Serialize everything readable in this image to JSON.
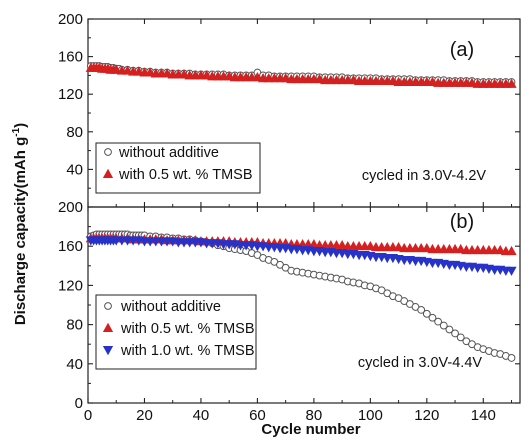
{
  "figure": {
    "ylabel": "Discharge capacity(mAh g",
    "ylabel_sup": "-1",
    "ylabel_close": ")",
    "xlabel": "Cycle number"
  },
  "chart_data": [
    {
      "type": "scatter",
      "panel_label": "(a)",
      "annotation": "cycled in 3.0V-4.2V",
      "xlim": [
        0,
        153
      ],
      "ylim": [
        0,
        200
      ],
      "xticks": [
        0,
        20,
        40,
        60,
        80,
        100,
        120,
        140
      ],
      "yticks": [
        40,
        80,
        120,
        160,
        200
      ],
      "legend_position": "bottom-left",
      "series": [
        {
          "name": "without additive",
          "marker": "circle-open",
          "color": "#555555",
          "x": [
            1,
            2,
            3,
            4,
            5,
            6,
            7,
            8,
            9,
            10,
            11,
            12,
            14,
            16,
            18,
            20,
            22,
            24,
            26,
            28,
            30,
            32,
            34,
            36,
            38,
            40,
            42,
            44,
            46,
            48,
            50,
            52,
            54,
            56,
            58,
            60,
            62,
            64,
            66,
            68,
            70,
            72,
            74,
            76,
            78,
            80,
            82,
            84,
            86,
            88,
            90,
            92,
            94,
            96,
            98,
            100,
            102,
            104,
            106,
            108,
            110,
            112,
            114,
            116,
            118,
            120,
            122,
            124,
            126,
            128,
            130,
            132,
            134,
            136,
            138,
            140,
            142,
            144,
            146,
            148,
            150
          ],
          "y": [
            150,
            150,
            150,
            150,
            149,
            149,
            149,
            148,
            148,
            147,
            147,
            146,
            146,
            145,
            145,
            144,
            144,
            143,
            143,
            143,
            142,
            142,
            142,
            142,
            141,
            141,
            141,
            141,
            141,
            141,
            140,
            140,
            140,
            140,
            140,
            143,
            140,
            140,
            139,
            139,
            139,
            139,
            139,
            139,
            139,
            139,
            138,
            138,
            138,
            138,
            138,
            137,
            137,
            137,
            137,
            137,
            137,
            136,
            136,
            136,
            136,
            136,
            136,
            135,
            135,
            135,
            135,
            135,
            135,
            134,
            134,
            134,
            134,
            134,
            133,
            133,
            133,
            133,
            133,
            133,
            133
          ]
        },
        {
          "name": "with 0.5 wt. % TMSB",
          "marker": "triangle-up",
          "color": "#d62020",
          "x": [
            1,
            2,
            3,
            4,
            5,
            6,
            7,
            8,
            9,
            10,
            12,
            14,
            16,
            18,
            20,
            22,
            24,
            26,
            28,
            30,
            32,
            34,
            36,
            38,
            40,
            42,
            44,
            46,
            48,
            50,
            52,
            54,
            56,
            58,
            60,
            62,
            64,
            66,
            68,
            70,
            72,
            74,
            76,
            78,
            80,
            82,
            84,
            86,
            88,
            90,
            92,
            94,
            96,
            98,
            100,
            102,
            104,
            106,
            108,
            110,
            112,
            114,
            116,
            118,
            120,
            122,
            124,
            126,
            128,
            130,
            132,
            134,
            136,
            138,
            140,
            142,
            144,
            146,
            148,
            150
          ],
          "y": [
            148,
            148,
            148,
            148,
            147,
            147,
            147,
            146,
            146,
            146,
            145,
            145,
            144,
            144,
            143,
            143,
            142,
            142,
            142,
            141,
            141,
            141,
            140,
            140,
            140,
            140,
            139,
            139,
            139,
            139,
            138,
            138,
            138,
            138,
            138,
            137,
            137,
            137,
            137,
            137,
            136,
            136,
            136,
            136,
            136,
            136,
            135,
            135,
            135,
            135,
            135,
            135,
            134,
            134,
            134,
            134,
            134,
            134,
            134,
            133,
            133,
            133,
            133,
            133,
            133,
            133,
            132,
            132,
            132,
            132,
            132,
            132,
            132,
            131,
            131,
            131,
            131,
            131,
            131,
            131
          ]
        }
      ]
    },
    {
      "type": "scatter",
      "panel_label": "(b)",
      "annotation": "cycled in 3.0V-4.4V",
      "xlim": [
        0,
        153
      ],
      "ylim": [
        0,
        200
      ],
      "xticks": [
        0,
        20,
        40,
        60,
        80,
        100,
        120,
        140
      ],
      "yticks": [
        0,
        40,
        80,
        120,
        160,
        200
      ],
      "legend_position": "bottom-left",
      "series": [
        {
          "name": "without additive",
          "marker": "circle-open",
          "color": "#555555",
          "x": [
            1,
            2,
            3,
            4,
            5,
            6,
            7,
            8,
            9,
            10,
            11,
            12,
            13,
            14,
            15,
            16,
            17,
            18,
            19,
            20,
            22,
            24,
            26,
            28,
            30,
            32,
            34,
            36,
            38,
            40,
            42,
            44,
            46,
            48,
            50,
            52,
            54,
            56,
            58,
            60,
            62,
            64,
            66,
            68,
            70,
            72,
            74,
            76,
            78,
            80,
            82,
            84,
            86,
            88,
            90,
            92,
            94,
            96,
            98,
            100,
            102,
            104,
            106,
            108,
            110,
            112,
            114,
            116,
            118,
            120,
            122,
            124,
            126,
            128,
            130,
            132,
            134,
            136,
            138,
            140,
            142,
            144,
            146,
            148,
            150
          ],
          "y": [
            170,
            171,
            172,
            172,
            172,
            172,
            172,
            172,
            172,
            172,
            172,
            172,
            172,
            172,
            171,
            171,
            171,
            171,
            171,
            171,
            170,
            170,
            169,
            169,
            168,
            168,
            167,
            167,
            166,
            165,
            164,
            163,
            161,
            160,
            158,
            157,
            156,
            155,
            153,
            151,
            148,
            146,
            144,
            141,
            138,
            135,
            134,
            133,
            132,
            131,
            130,
            129,
            128,
            127,
            126,
            124,
            123,
            122,
            120,
            119,
            117,
            115,
            112,
            109,
            107,
            104,
            101,
            98,
            95,
            91,
            87,
            83,
            79,
            75,
            71,
            67,
            63,
            60,
            57,
            55,
            53,
            51,
            50,
            48,
            46
          ]
        },
        {
          "name": "with 0.5 wt. % TMSB",
          "marker": "triangle-up",
          "color": "#d62020",
          "x": [
            1,
            2,
            3,
            4,
            5,
            6,
            7,
            8,
            9,
            10,
            12,
            14,
            16,
            18,
            20,
            22,
            24,
            26,
            28,
            30,
            32,
            34,
            36,
            38,
            40,
            42,
            44,
            46,
            48,
            50,
            52,
            54,
            56,
            58,
            60,
            62,
            64,
            66,
            68,
            70,
            72,
            74,
            76,
            78,
            80,
            82,
            84,
            86,
            88,
            90,
            92,
            94,
            96,
            98,
            100,
            102,
            104,
            106,
            108,
            110,
            112,
            114,
            116,
            118,
            120,
            122,
            124,
            126,
            128,
            130,
            132,
            134,
            136,
            138,
            140,
            142,
            144,
            146,
            148,
            150
          ],
          "y": [
            168,
            168,
            168,
            168,
            168,
            168,
            168,
            168,
            168,
            168,
            168,
            168,
            167,
            167,
            167,
            167,
            167,
            167,
            166,
            166,
            166,
            166,
            166,
            166,
            165,
            165,
            165,
            165,
            165,
            165,
            164,
            164,
            164,
            164,
            164,
            163,
            163,
            163,
            163,
            163,
            162,
            162,
            162,
            162,
            162,
            161,
            161,
            161,
            161,
            161,
            160,
            160,
            160,
            160,
            160,
            159,
            159,
            159,
            159,
            159,
            158,
            158,
            158,
            158,
            158,
            157,
            157,
            157,
            157,
            157,
            157,
            156,
            156,
            156,
            156,
            156,
            156,
            156,
            155,
            155
          ]
        },
        {
          "name": "with 1.0 wt. % TMSB",
          "marker": "triangle-down",
          "color": "#2733c8",
          "x": [
            1,
            2,
            3,
            4,
            5,
            6,
            7,
            8,
            9,
            10,
            12,
            14,
            16,
            18,
            20,
            22,
            24,
            26,
            28,
            30,
            32,
            34,
            36,
            38,
            40,
            42,
            44,
            46,
            48,
            50,
            52,
            54,
            56,
            58,
            60,
            62,
            64,
            66,
            68,
            70,
            72,
            74,
            76,
            78,
            80,
            82,
            84,
            86,
            88,
            90,
            92,
            94,
            96,
            98,
            100,
            102,
            104,
            106,
            108,
            110,
            112,
            114,
            116,
            118,
            120,
            122,
            124,
            126,
            128,
            130,
            132,
            134,
            136,
            138,
            140,
            142,
            144,
            146,
            148,
            150
          ],
          "y": [
            166,
            166,
            166,
            166,
            166,
            166,
            166,
            166,
            166,
            166,
            166,
            166,
            166,
            166,
            165,
            165,
            165,
            165,
            165,
            165,
            164,
            164,
            164,
            164,
            164,
            163,
            163,
            163,
            162,
            162,
            162,
            161,
            161,
            161,
            160,
            160,
            159,
            159,
            158,
            158,
            157,
            157,
            156,
            156,
            155,
            155,
            154,
            154,
            153,
            153,
            152,
            152,
            151,
            151,
            150,
            149,
            149,
            148,
            148,
            147,
            146,
            146,
            145,
            145,
            144,
            143,
            143,
            142,
            141,
            141,
            140,
            139,
            139,
            138,
            138,
            137,
            136,
            136,
            135,
            135
          ]
        }
      ]
    }
  ]
}
